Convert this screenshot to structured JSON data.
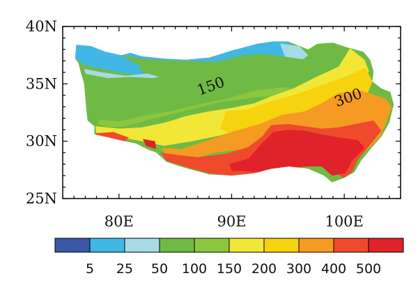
{
  "chart_data": {
    "type": "heatmap",
    "x_axis": {
      "range": [
        75,
        105
      ],
      "ticks": [
        80,
        90,
        100
      ],
      "tick_labels": [
        "80E",
        "90E",
        "100E"
      ]
    },
    "y_axis": {
      "range": [
        25,
        40
      ],
      "ticks": [
        25,
        30,
        35,
        40
      ],
      "tick_labels": [
        "25N",
        "30N",
        "35N",
        "40N"
      ]
    },
    "contour_labels": [
      {
        "text": "150",
        "lon": 88.3,
        "lat": 34.4
      },
      {
        "text": "300",
        "lon": 100.5,
        "lat": 33.4
      }
    ],
    "colorbar": {
      "levels": [
        "5",
        "25",
        "50",
        "100",
        "150",
        "200",
        "300",
        "400",
        "500"
      ],
      "colors": [
        "#3a57a7",
        "#41b7e6",
        "#a6dbe6",
        "#6fba44",
        "#8cc63f",
        "#f2e736",
        "#f7d20e",
        "#f59a23",
        "#ef4a2b",
        "#e0222b"
      ]
    },
    "regions": [
      {
        "name": "tarim-gap",
        "colorIndex": 1,
        "points": [
          [
            80.5,
            38.0
          ],
          [
            84,
            37.4
          ],
          [
            88,
            37.2
          ],
          [
            90,
            38.0
          ],
          [
            92,
            38.6
          ],
          [
            93.5,
            38.4
          ],
          [
            94,
            37.6
          ],
          [
            93.5,
            36.8
          ],
          [
            92,
            36.5
          ],
          [
            89,
            36.9
          ],
          [
            86,
            37.0
          ],
          [
            83,
            37.1
          ],
          [
            80.5,
            37.4
          ]
        ]
      },
      {
        "name": "west-north-blue",
        "colorIndex": 1,
        "points": [
          [
            76.2,
            38.4
          ],
          [
            77.5,
            38.3
          ],
          [
            78.8,
            37.8
          ],
          [
            80.2,
            37.5
          ],
          [
            80.8,
            37.1
          ],
          [
            81.8,
            36.6
          ],
          [
            82.2,
            35.8
          ],
          [
            80.5,
            35.9
          ],
          [
            78.5,
            36.3
          ],
          [
            77.0,
            36.6
          ],
          [
            76.1,
            37.2
          ]
        ]
      },
      {
        "name": "west-light-blue",
        "colorIndex": 2,
        "points": [
          [
            76.9,
            36.3
          ],
          [
            78.5,
            36.0
          ],
          [
            80.6,
            35.7
          ],
          [
            82.5,
            35.9
          ],
          [
            84.4,
            35.4
          ],
          [
            83.5,
            34.9
          ],
          [
            81,
            35.1
          ],
          [
            79,
            35.3
          ],
          [
            77.2,
            35.4
          ]
        ]
      },
      {
        "name": "northeast-blue",
        "colorIndex": 1,
        "points": [
          [
            92.3,
            38.5
          ],
          [
            93.7,
            38.7
          ],
          [
            95.0,
            38.7
          ],
          [
            95.7,
            38.1
          ],
          [
            94.5,
            37.2
          ],
          [
            93.1,
            37.2
          ],
          [
            92.5,
            37.9
          ]
        ]
      },
      {
        "name": "northeast-light-blue",
        "colorIndex": 2,
        "points": [
          [
            94.3,
            38.5
          ],
          [
            96.0,
            38.3
          ],
          [
            96.8,
            37.5
          ],
          [
            96.0,
            36.9
          ],
          [
            94.8,
            37.2
          ]
        ]
      },
      {
        "name": "green-plateau",
        "colorIndex": 3,
        "points": [
          [
            76.9,
            35.9
          ],
          [
            79,
            35.5
          ],
          [
            81,
            35.6
          ],
          [
            83,
            35.5
          ],
          [
            85,
            35.9
          ],
          [
            87,
            36.6
          ],
          [
            89,
            37.0
          ],
          [
            91,
            37.5
          ],
          [
            92.8,
            37.6
          ],
          [
            94.5,
            37.4
          ],
          [
            96.6,
            37.1
          ],
          [
            97.4,
            37.8
          ],
          [
            99.1,
            37.4
          ],
          [
            100.1,
            36.5
          ],
          [
            99.0,
            35.4
          ],
          [
            96.8,
            35.0
          ],
          [
            94,
            35.1
          ],
          [
            91.5,
            34.5
          ],
          [
            89,
            33.8
          ],
          [
            86.5,
            33.3
          ],
          [
            84,
            32.6
          ],
          [
            81.5,
            32.1
          ],
          [
            79.5,
            31.5
          ],
          [
            78,
            31.8
          ],
          [
            77.2,
            32.7
          ],
          [
            76.9,
            34.0
          ]
        ]
      },
      {
        "name": "lightgreen-band",
        "colorIndex": 4,
        "points": [
          [
            78.2,
            31.9
          ],
          [
            80,
            31.7
          ],
          [
            82,
            32.2
          ],
          [
            84.5,
            32.6
          ],
          [
            87,
            33.2
          ],
          [
            89.5,
            33.7
          ],
          [
            92,
            34.4
          ],
          [
            94.5,
            34.7
          ],
          [
            96.6,
            34.5
          ],
          [
            95,
            34.0
          ],
          [
            92,
            33.8
          ],
          [
            89,
            33.4
          ],
          [
            86.5,
            32.8
          ],
          [
            84,
            32.2
          ],
          [
            82,
            31.7
          ],
          [
            80.5,
            31.3
          ],
          [
            79,
            31.2
          ],
          [
            78.2,
            31.5
          ]
        ]
      },
      {
        "name": "yellow-band",
        "colorIndex": 5,
        "points": [
          [
            77.9,
            31.3
          ],
          [
            80,
            31.1
          ],
          [
            82,
            31.2
          ],
          [
            84,
            31.6
          ],
          [
            86,
            32.2
          ],
          [
            88,
            32.6
          ],
          [
            90,
            32.9
          ],
          [
            92,
            33.3
          ],
          [
            93.5,
            33.9
          ],
          [
            95.5,
            34.6
          ],
          [
            97.3,
            35.5
          ],
          [
            99.5,
            36.5
          ],
          [
            100.2,
            37.6
          ],
          [
            100.5,
            38.1
          ],
          [
            101.8,
            37.1
          ],
          [
            102.2,
            36.1
          ],
          [
            101.4,
            35.0
          ],
          [
            100.0,
            34.2
          ],
          [
            97.5,
            33.2
          ],
          [
            94.5,
            32.3
          ],
          [
            91.5,
            31.2
          ],
          [
            89,
            30.5
          ],
          [
            86.5,
            30.0
          ],
          [
            84,
            29.6
          ],
          [
            81.5,
            30.1
          ],
          [
            79.5,
            30.4
          ],
          [
            78.0,
            30.7
          ]
        ]
      },
      {
        "name": "yellow-deep",
        "colorIndex": 6,
        "points": [
          [
            89.5,
            32.6
          ],
          [
            91.5,
            32.8
          ],
          [
            93.5,
            33.5
          ],
          [
            95.5,
            34.0
          ],
          [
            97.8,
            34.8
          ],
          [
            100.0,
            35.6
          ],
          [
            101.9,
            36.4
          ],
          [
            102.5,
            35.2
          ],
          [
            102.0,
            34.0
          ],
          [
            100,
            33.3
          ],
          [
            97.5,
            32.5
          ],
          [
            94.5,
            31.6
          ],
          [
            92,
            30.9
          ],
          [
            90,
            30.6
          ],
          [
            89,
            31.1
          ]
        ]
      },
      {
        "name": "orange-band",
        "colorIndex": 7,
        "points": [
          [
            83.8,
            29.4
          ],
          [
            85.5,
            29.3
          ],
          [
            88,
            30.1
          ],
          [
            90,
            30.8
          ],
          [
            92.5,
            31.5
          ],
          [
            94.5,
            32.3
          ],
          [
            96.5,
            32.6
          ],
          [
            98,
            33.3
          ],
          [
            99.5,
            34.2
          ],
          [
            101.5,
            34.4
          ],
          [
            102.8,
            34.0
          ],
          [
            103.7,
            33.7
          ],
          [
            104.2,
            33.0
          ],
          [
            103.8,
            31.8
          ],
          [
            103.2,
            30.4
          ],
          [
            102.0,
            29.2
          ],
          [
            100.4,
            28.2
          ],
          [
            98.5,
            28.2
          ],
          [
            96,
            28.8
          ],
          [
            93.5,
            29.4
          ],
          [
            91,
            29.3
          ],
          [
            88.5,
            29.0
          ],
          [
            86.3,
            28.4
          ],
          [
            84.2,
            28.6
          ]
        ]
      },
      {
        "name": "red-west-patch",
        "colorIndex": 8,
        "points": [
          [
            78.0,
            30.7
          ],
          [
            79.5,
            30.8
          ],
          [
            80.9,
            30.3
          ],
          [
            80.3,
            29.9
          ],
          [
            78.9,
            30.3
          ],
          [
            77.9,
            30.4
          ]
        ]
      },
      {
        "name": "red-west-small",
        "colorIndex": 9,
        "points": [
          [
            82.1,
            30.2
          ],
          [
            83.2,
            30.0
          ],
          [
            83.3,
            29.3
          ],
          [
            82.4,
            29.6
          ]
        ]
      },
      {
        "name": "red-south",
        "colorIndex": 8,
        "points": [
          [
            83.7,
            29.0
          ],
          [
            85.2,
            28.8
          ],
          [
            87,
            28.6
          ],
          [
            89.5,
            28.9
          ],
          [
            91.5,
            29.5
          ],
          [
            92.7,
            30.4
          ],
          [
            93.5,
            31.4
          ],
          [
            95,
            31.5
          ],
          [
            96.5,
            31.3
          ],
          [
            98,
            31.1
          ],
          [
            99.5,
            31.2
          ],
          [
            101.0,
            31.5
          ],
          [
            102.6,
            31.8
          ],
          [
            103.3,
            30.9
          ],
          [
            102.3,
            29.7
          ],
          [
            101.2,
            28.4
          ],
          [
            100.7,
            27.3
          ],
          [
            99.9,
            26.8
          ],
          [
            98.9,
            27.5
          ],
          [
            97.5,
            27.9
          ],
          [
            96,
            27.7
          ],
          [
            94.0,
            27.5
          ],
          [
            92,
            27.2
          ],
          [
            90.0,
            27.0
          ],
          [
            88,
            27.2
          ],
          [
            86.5,
            27.6
          ],
          [
            85.2,
            28.0
          ],
          [
            84.2,
            28.3
          ]
        ]
      },
      {
        "name": "red-core",
        "colorIndex": 9,
        "points": [
          [
            89.8,
            28.0
          ],
          [
            91.5,
            28.5
          ],
          [
            92.5,
            29.6
          ],
          [
            93.7,
            30.8
          ],
          [
            95.0,
            31.0
          ],
          [
            96.5,
            30.9
          ],
          [
            98.0,
            30.6
          ],
          [
            99.6,
            30.3
          ],
          [
            101.2,
            30.1
          ],
          [
            101.8,
            29.4
          ],
          [
            100.7,
            28.3
          ],
          [
            100.1,
            27.2
          ],
          [
            98.9,
            27.0
          ],
          [
            98.0,
            27.8
          ],
          [
            96.5,
            27.8
          ],
          [
            94.5,
            27.6
          ],
          [
            92.5,
            27.3
          ],
          [
            91.0,
            27.4
          ],
          [
            90.0,
            27.4
          ]
        ]
      }
    ],
    "plateau_outline": [
      [
        76.2,
        38.4
      ],
      [
        77.5,
        38.3
      ],
      [
        78.8,
        37.8
      ],
      [
        80.2,
        37.5
      ],
      [
        81.0,
        37.7
      ],
      [
        82,
        37.4
      ],
      [
        84,
        37.2
      ],
      [
        86,
        37.1
      ],
      [
        88,
        37.3
      ],
      [
        90,
        37.9
      ],
      [
        92.3,
        38.5
      ],
      [
        93.7,
        38.7
      ],
      [
        95.0,
        38.7
      ],
      [
        96.8,
        38.0
      ],
      [
        97.6,
        38.5
      ],
      [
        99.0,
        38.6
      ],
      [
        100.2,
        38.2
      ],
      [
        101.7,
        37.8
      ],
      [
        102.3,
        37.1
      ],
      [
        102.6,
        36.1
      ],
      [
        102.5,
        35.2
      ],
      [
        103.3,
        34.6
      ],
      [
        104.1,
        34.3
      ],
      [
        104.4,
        33.2
      ],
      [
        104.0,
        31.6
      ],
      [
        103.3,
        30.4
      ],
      [
        102.4,
        29.4
      ],
      [
        101.5,
        28.3
      ],
      [
        100.9,
        27.3
      ],
      [
        100.0,
        26.8
      ],
      [
        98.9,
        26.4
      ],
      [
        98.2,
        27.0
      ],
      [
        96.8,
        27.6
      ],
      [
        95.1,
        27.8
      ],
      [
        93.5,
        27.6
      ],
      [
        92.0,
        27.2
      ],
      [
        90.0,
        27.0
      ],
      [
        88.0,
        27.1
      ],
      [
        86.5,
        27.5
      ],
      [
        85.4,
        27.8
      ],
      [
        84.2,
        28.2
      ],
      [
        83.3,
        29.0
      ],
      [
        82.5,
        29.3
      ],
      [
        81.5,
        29.8
      ],
      [
        80.5,
        30.0
      ],
      [
        79.2,
        30.3
      ],
      [
        77.8,
        30.6
      ],
      [
        77.8,
        31.3
      ],
      [
        77.2,
        31.8
      ],
      [
        77.1,
        32.7
      ],
      [
        77.0,
        34.0
      ],
      [
        76.9,
        35.0
      ],
      [
        76.6,
        36.0
      ],
      [
        76.4,
        36.8
      ],
      [
        76.1,
        37.2
      ]
    ]
  }
}
